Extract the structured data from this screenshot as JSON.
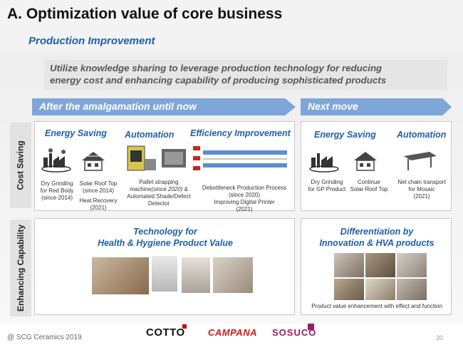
{
  "header": {
    "title": "A. Optimization value of core business",
    "subtitle": "Production Improvement"
  },
  "banner": {
    "line1": "Utilize knowledge sharing to leverage production technology for reducing",
    "line2": "energy cost and enhancing capability of producing sophisticated products"
  },
  "phases": {
    "after": "After the amalgamation until now",
    "next": "Next move"
  },
  "rows": {
    "cost": "Cost Saving",
    "enhancing": "Enhancing Capability"
  },
  "current": {
    "energy_saving": "Energy Saving",
    "automation": "Automation",
    "efficiency": "Efficiency Improvement",
    "dry_grinding": [
      "Dry Grinding",
      "for Red Body",
      "(since 2014)"
    ],
    "solar_roof": [
      "Solar Roof Top",
      "(since 2014)"
    ],
    "heat_recovery": [
      "Heat Recovery",
      "(2021)"
    ],
    "pallet": [
      "Pallet strapping",
      "machine",
      "(since 2020)",
      " &",
      "Automated Shade/Defect",
      "Detector"
    ],
    "debottleneck": [
      "Debottleneck Production Process",
      "(since 2020)"
    ],
    "digital_printer": [
      "Improving Digital Printer",
      "(2021)"
    ],
    "enh_title": [
      "Technology for",
      "Health & Hygiene Product Value"
    ]
  },
  "next": {
    "energy_saving": "Energy Saving",
    "automation": "Automation",
    "dry_grinding": [
      "Dry Grinding",
      "for GP Product"
    ],
    "solar_roof": [
      "Continue",
      "Solar Roof Top"
    ],
    "net_chain": [
      "Net chain transport",
      "for Mosaic",
      "(2021)"
    ],
    "enh_title": [
      "Differentiation by",
      "Innovation & HVA products"
    ],
    "enh_caption": "Product value enhancement with effect and function"
  },
  "footer": {
    "copyright": "@ SCG Ceramics 2019",
    "page": "20",
    "logos": [
      "COTTO",
      "CAMPANA",
      "SOSUCO"
    ]
  }
}
